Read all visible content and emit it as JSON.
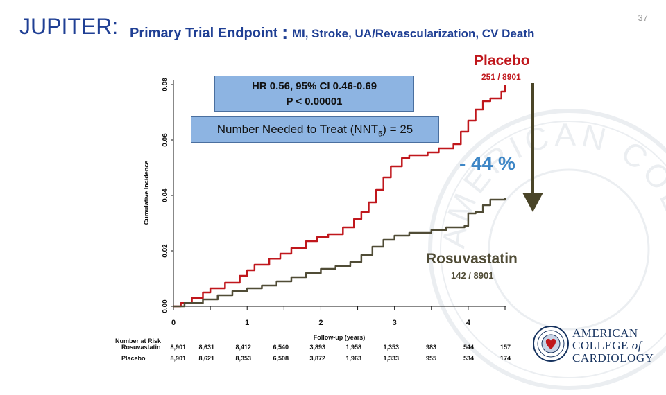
{
  "slide": {
    "main_title": "JUPITER:",
    "subtitle_bold": "Primary Trial Endpoint",
    "subtitle_colon": ":",
    "subtitle_rest": "MI, Stroke, UA/Revascularization, CV Death",
    "page_number": "37"
  },
  "annotations": {
    "hr_line1": "HR 0.56, 95% CI 0.46-0.69",
    "hr_line2": "P < 0.00001",
    "nnt_prefix": "Number Needed to Treat (NNT",
    "nnt_sub": "5",
    "nnt_suffix": ") = 25",
    "placebo_label": "Placebo",
    "placebo_count": "251 / 8901",
    "rosu_label": "Rosuvastatin",
    "rosu_count": "142 / 8901",
    "reduction": "- 44 %"
  },
  "chart_data": {
    "type": "line",
    "title": "Primary Trial Endpoint",
    "xlabel": "Follow-up (years)",
    "ylabel": "Cumulative Incidence",
    "xlim": [
      0,
      4.5
    ],
    "ylim": [
      0,
      0.08
    ],
    "x_ticks": [
      "0",
      "1",
      "2",
      "3",
      "4"
    ],
    "y_ticks": [
      "0.00",
      "0.02",
      "0.04",
      "0.06",
      "0.08"
    ],
    "series": [
      {
        "name": "Placebo",
        "color": "#c0171c",
        "points": [
          [
            0,
            0
          ],
          [
            0.1,
            0.0012
          ],
          [
            0.25,
            0.003
          ],
          [
            0.4,
            0.005
          ],
          [
            0.5,
            0.0065
          ],
          [
            0.7,
            0.0085
          ],
          [
            0.9,
            0.011
          ],
          [
            1.0,
            0.013
          ],
          [
            1.1,
            0.015
          ],
          [
            1.3,
            0.0172
          ],
          [
            1.45,
            0.019
          ],
          [
            1.6,
            0.021
          ],
          [
            1.8,
            0.0235
          ],
          [
            1.95,
            0.025
          ],
          [
            2.1,
            0.026
          ],
          [
            2.3,
            0.0285
          ],
          [
            2.45,
            0.0315
          ],
          [
            2.55,
            0.034
          ],
          [
            2.65,
            0.0375
          ],
          [
            2.75,
            0.042
          ],
          [
            2.85,
            0.0465
          ],
          [
            2.95,
            0.0505
          ],
          [
            3.1,
            0.0535
          ],
          [
            3.2,
            0.0545
          ],
          [
            3.45,
            0.0555
          ],
          [
            3.6,
            0.057
          ],
          [
            3.8,
            0.0585
          ],
          [
            3.9,
            0.063
          ],
          [
            4.0,
            0.067
          ],
          [
            4.1,
            0.071
          ],
          [
            4.2,
            0.074
          ],
          [
            4.3,
            0.075
          ],
          [
            4.45,
            0.0775
          ],
          [
            4.5,
            0.08
          ]
        ]
      },
      {
        "name": "Rosuvastatin",
        "color": "#504c36",
        "points": [
          [
            0,
            0
          ],
          [
            0.15,
            0.0012
          ],
          [
            0.4,
            0.0025
          ],
          [
            0.6,
            0.004
          ],
          [
            0.8,
            0.0055
          ],
          [
            1.0,
            0.0065
          ],
          [
            1.2,
            0.0075
          ],
          [
            1.4,
            0.009
          ],
          [
            1.6,
            0.0105
          ],
          [
            1.8,
            0.012
          ],
          [
            2.0,
            0.0135
          ],
          [
            2.2,
            0.0145
          ],
          [
            2.4,
            0.016
          ],
          [
            2.55,
            0.0185
          ],
          [
            2.7,
            0.0215
          ],
          [
            2.85,
            0.024
          ],
          [
            3.0,
            0.0255
          ],
          [
            3.2,
            0.0265
          ],
          [
            3.5,
            0.0275
          ],
          [
            3.7,
            0.0285
          ],
          [
            3.95,
            0.029
          ],
          [
            4.0,
            0.0335
          ],
          [
            4.1,
            0.034
          ],
          [
            4.2,
            0.0365
          ],
          [
            4.3,
            0.0385
          ],
          [
            4.5,
            0.039
          ]
        ]
      }
    ]
  },
  "risk_table": {
    "header": "Number at Risk",
    "rows": [
      {
        "label": "Rosuvastatin",
        "values": [
          "8,901",
          "8,631",
          "8,412",
          "6,540",
          "3,893",
          "1,958",
          "1,353",
          "983",
          "544",
          "157"
        ]
      },
      {
        "label": "Placebo",
        "values": [
          "8,901",
          "8,621",
          "8,353",
          "6,508",
          "3,872",
          "1,963",
          "1,333",
          "955",
          "534",
          "174"
        ]
      }
    ]
  },
  "logo": {
    "line1": "AMERICAN",
    "line2_prefix": "COLLEGE",
    "line2_of": "of",
    "line3": "CARDIOLOGY",
    "watermark_text": "AMERICAN COLLEGE OF CARDIOLOGY"
  },
  "colors": {
    "title": "#1f3f94",
    "placebo": "#c0171c",
    "rosuvastatin": "#504c36",
    "reduction": "#3d86c6",
    "box_fill": "#8db4e2",
    "arrow": "#4a4528"
  }
}
